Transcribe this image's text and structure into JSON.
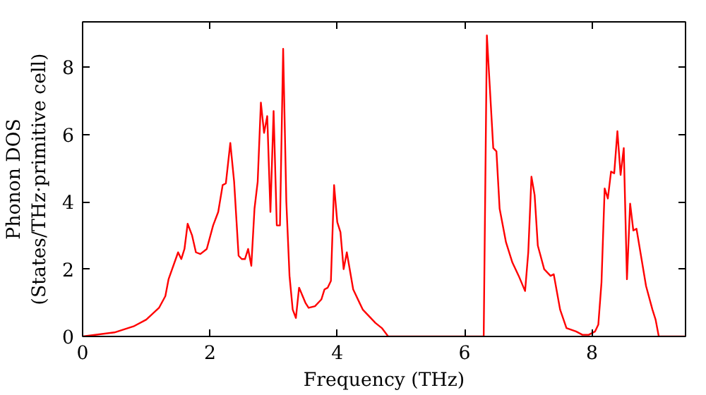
{
  "chart_data": {
    "type": "line",
    "xlabel": "Frequency (THz)",
    "ylabel": "Phonon DOS\n(States/THz·primitive cell)",
    "xlim": [
      0,
      9.47
    ],
    "ylim": [
      0,
      9.35
    ],
    "xticks": [
      0,
      2,
      4,
      6,
      8
    ],
    "yticks": [
      0,
      2,
      4,
      6,
      8
    ],
    "grid": false,
    "series": [
      {
        "color": "#ff0000",
        "x": [
          0,
          0.5,
          0.8,
          1.0,
          1.2,
          1.3,
          1.35,
          1.5,
          1.55,
          1.6,
          1.65,
          1.72,
          1.78,
          1.85,
          1.95,
          2.05,
          2.13,
          2.2,
          2.25,
          2.32,
          2.38,
          2.45,
          2.5,
          2.55,
          2.6,
          2.65,
          2.7,
          2.75,
          2.8,
          2.85,
          2.9,
          2.95,
          3.0,
          3.05,
          3.1,
          3.15,
          3.2,
          3.25,
          3.3,
          3.35,
          3.4,
          3.5,
          3.55,
          3.65,
          3.75,
          3.8,
          3.85,
          3.9,
          3.95,
          4.0,
          4.05,
          4.1,
          4.15,
          4.25,
          4.4,
          4.6,
          4.7,
          4.8,
          6.3,
          6.35,
          6.45,
          6.5,
          6.55,
          6.65,
          6.75,
          6.85,
          6.95,
          7.0,
          7.05,
          7.1,
          7.15,
          7.25,
          7.35,
          7.4,
          7.5,
          7.6,
          7.75,
          7.85,
          7.95,
          8.05,
          8.1,
          8.15,
          8.2,
          8.25,
          8.3,
          8.35,
          8.4,
          8.45,
          8.5,
          8.55,
          8.6,
          8.65,
          8.7,
          8.85,
          8.95,
          9.0,
          9.05,
          9.47
        ],
        "values": [
          0,
          0.12,
          0.3,
          0.5,
          0.85,
          1.2,
          1.7,
          2.5,
          2.3,
          2.6,
          3.35,
          3.0,
          2.5,
          2.45,
          2.6,
          3.3,
          3.7,
          4.5,
          4.55,
          5.75,
          4.6,
          2.4,
          2.3,
          2.3,
          2.6,
          2.1,
          3.8,
          4.6,
          6.95,
          6.05,
          6.55,
          3.7,
          6.7,
          3.3,
          3.3,
          8.55,
          4.0,
          1.8,
          0.8,
          0.55,
          1.45,
          1.0,
          0.85,
          0.9,
          1.1,
          1.4,
          1.45,
          1.65,
          4.5,
          3.4,
          3.1,
          2.0,
          2.5,
          1.4,
          0.8,
          0.4,
          0.25,
          0,
          0,
          8.95,
          5.6,
          5.5,
          3.8,
          2.8,
          2.2,
          1.8,
          1.35,
          2.5,
          4.75,
          4.2,
          2.7,
          2.0,
          1.8,
          1.85,
          0.8,
          0.25,
          0.15,
          0.05,
          0.05,
          0.15,
          0.35,
          1.6,
          4.4,
          4.1,
          4.9,
          4.85,
          6.1,
          4.8,
          5.6,
          1.7,
          3.95,
          3.15,
          3.2,
          1.5,
          0.8,
          0.5,
          0,
          0
        ]
      }
    ]
  }
}
